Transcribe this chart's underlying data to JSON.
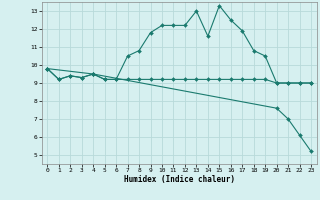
{
  "xlabel": "Humidex (Indice chaleur)",
  "bg_color": "#d6f0f0",
  "grid_color": "#b8dada",
  "line_color": "#1a7a6e",
  "marker": "D",
  "marker_size": 2.0,
  "line_width": 0.8,
  "xlim": [
    -0.5,
    23.5
  ],
  "ylim": [
    4.5,
    13.5
  ],
  "xticks": [
    0,
    1,
    2,
    3,
    4,
    5,
    6,
    7,
    8,
    9,
    10,
    11,
    12,
    13,
    14,
    15,
    16,
    17,
    18,
    19,
    20,
    21,
    22,
    23
  ],
  "yticks": [
    5,
    6,
    7,
    8,
    9,
    10,
    11,
    12,
    13
  ],
  "series": [
    {
      "x": [
        0,
        1,
        2,
        3,
        4,
        5,
        6,
        7,
        8,
        9,
        10,
        11,
        12,
        13,
        14,
        15,
        16,
        17,
        18,
        19,
        20,
        21,
        22,
        23
      ],
      "y": [
        9.8,
        9.2,
        9.4,
        9.3,
        9.5,
        9.2,
        9.2,
        10.5,
        10.8,
        11.8,
        12.2,
        12.2,
        12.2,
        13.0,
        11.6,
        13.3,
        12.5,
        11.9,
        10.8,
        10.5,
        9.0,
        9.0,
        9.0,
        9.0
      ]
    },
    {
      "x": [
        0,
        1,
        2,
        3,
        4,
        5,
        6,
        7,
        8,
        9,
        10,
        11,
        12,
        13,
        14,
        15,
        16,
        17,
        18,
        19,
        20,
        21,
        22,
        23
      ],
      "y": [
        9.8,
        9.2,
        9.4,
        9.3,
        9.5,
        9.2,
        9.2,
        9.2,
        9.2,
        9.2,
        9.2,
        9.2,
        9.2,
        9.2,
        9.2,
        9.2,
        9.2,
        9.2,
        9.2,
        9.2,
        9.0,
        9.0,
        9.0,
        9.0
      ]
    },
    {
      "x": [
        0,
        4,
        20,
        21,
        22,
        23
      ],
      "y": [
        9.8,
        9.5,
        7.6,
        7.0,
        6.1,
        5.2
      ]
    }
  ]
}
